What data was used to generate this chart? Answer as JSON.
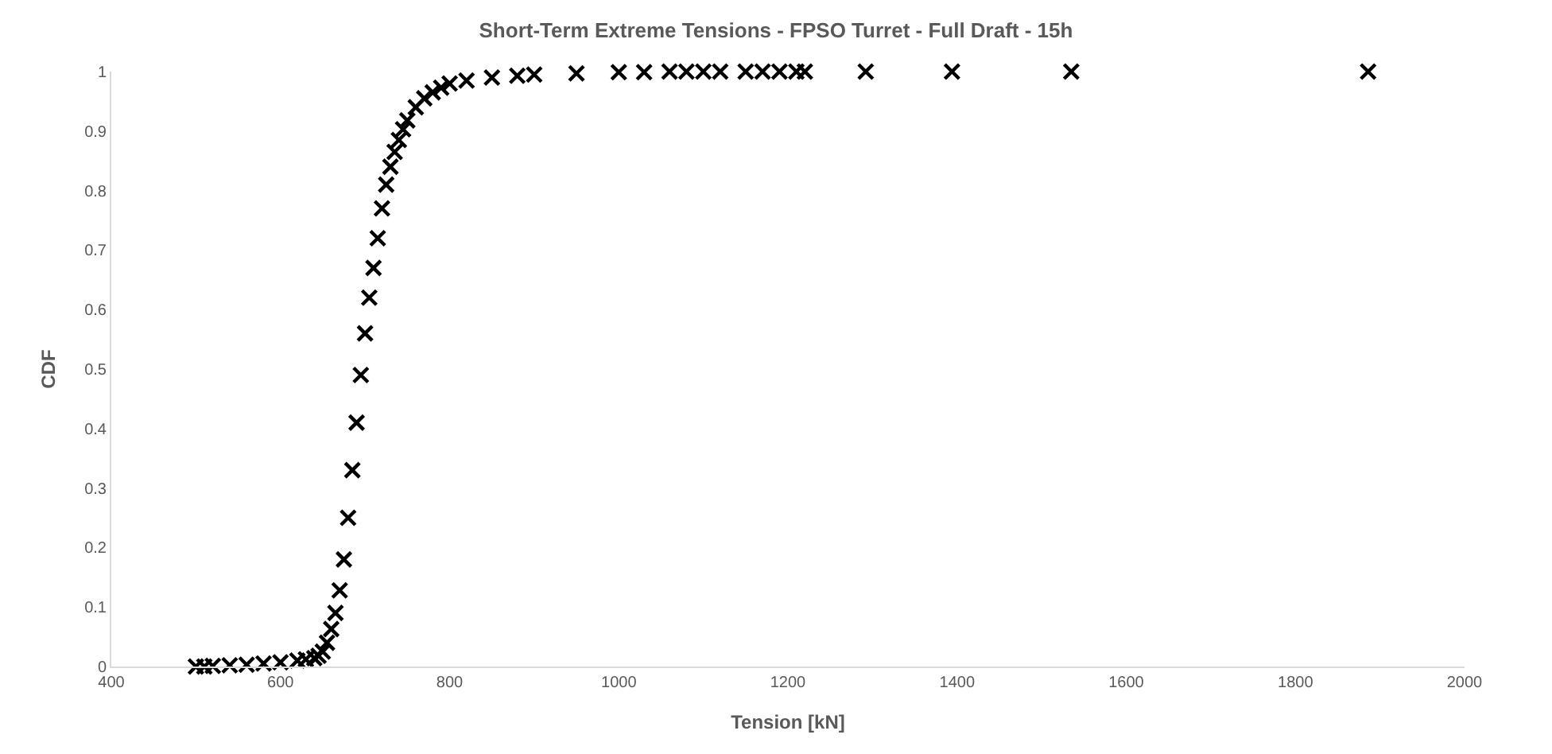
{
  "chart_data": {
    "type": "scatter",
    "title": "Short-Term Extreme Tensions - FPSO Turret - Full Draft - 15h",
    "xlabel": "Tension [kN]",
    "ylabel": "CDF",
    "x": [
      500,
      510,
      520,
      540,
      560,
      580,
      600,
      620,
      630,
      640,
      645,
      650,
      655,
      660,
      665,
      670,
      675,
      680,
      685,
      690,
      695,
      700,
      705,
      710,
      715,
      720,
      725,
      730,
      735,
      740,
      745,
      750,
      760,
      770,
      780,
      790,
      800,
      820,
      850,
      880,
      900,
      950,
      1000,
      1030,
      1060,
      1080,
      1100,
      1120,
      1150,
      1170,
      1190,
      1210,
      1220,
      1292,
      1394,
      1535,
      1886
    ],
    "series": [
      {
        "color": "#000000",
        "values": [
          0,
          0,
          0.001,
          0.002,
          0.003,
          0.005,
          0.007,
          0.01,
          0.012,
          0.014,
          0.018,
          0.025,
          0.04,
          0.063,
          0.09,
          0.128,
          0.18,
          0.25,
          0.33,
          0.41,
          0.49,
          0.56,
          0.62,
          0.67,
          0.72,
          0.77,
          0.81,
          0.84,
          0.865,
          0.885,
          0.903,
          0.918,
          0.94,
          0.955,
          0.965,
          0.973,
          0.98,
          0.985,
          0.99,
          0.993,
          0.995,
          0.997,
          0.999,
          0.999,
          1,
          1,
          1,
          1,
          1,
          1,
          1,
          1,
          1,
          1,
          1,
          1,
          1
        ]
      }
    ],
    "xlim": [
      400,
      2000
    ],
    "xticks": [
      400,
      600,
      800,
      1000,
      1200,
      1400,
      1600,
      1800,
      2000
    ],
    "ylim": [
      0,
      1
    ],
    "yticks": [
      0,
      0.1,
      0.2,
      0.3,
      0.4,
      0.5,
      0.6,
      0.7,
      0.8,
      0.9,
      1
    ],
    "marker": "cross"
  }
}
